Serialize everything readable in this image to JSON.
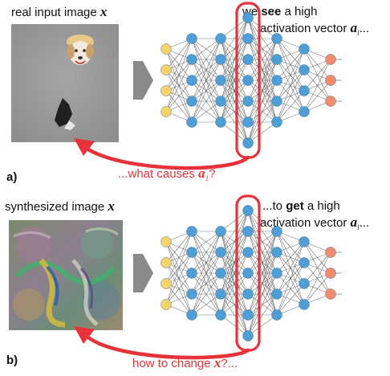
{
  "panel_a": {
    "letter": "a)",
    "input_label": "real input image",
    "input_var": "x",
    "top_label_line1_pre": "we ",
    "top_label_line1_bold": "see",
    "top_label_line1_post": " a high",
    "top_label_line2_pre": "activation vector ",
    "top_label_var": "a",
    "top_label_sub": "l",
    "top_label_line2_post": "...",
    "question_pre": "...what causes ",
    "question_var": "a",
    "question_sub": "1",
    "question_post": "?"
  },
  "panel_b": {
    "letter": "b)",
    "input_label": "synthesized image",
    "input_var": "x",
    "top_label_line1_pre": "...to ",
    "top_label_line1_bold": "get",
    "top_label_line1_post": " a high",
    "top_label_line2_pre": "activation vector ",
    "top_label_var": "a",
    "top_label_sub": "l",
    "top_label_line2_post": "...",
    "question_pre": "how to change ",
    "question_var": "x",
    "question_post": "?..."
  },
  "network": {
    "layer_sizes": [
      4,
      5,
      5,
      7,
      5,
      4,
      3
    ],
    "highlighted_layer": 3,
    "colors": {
      "input": "#f6d36b",
      "hidden": "#4f9ed6",
      "output": "#f28b6b",
      "highlight_box": "#e8323a",
      "arrow": "#e8323a",
      "edges": "#555555"
    }
  }
}
